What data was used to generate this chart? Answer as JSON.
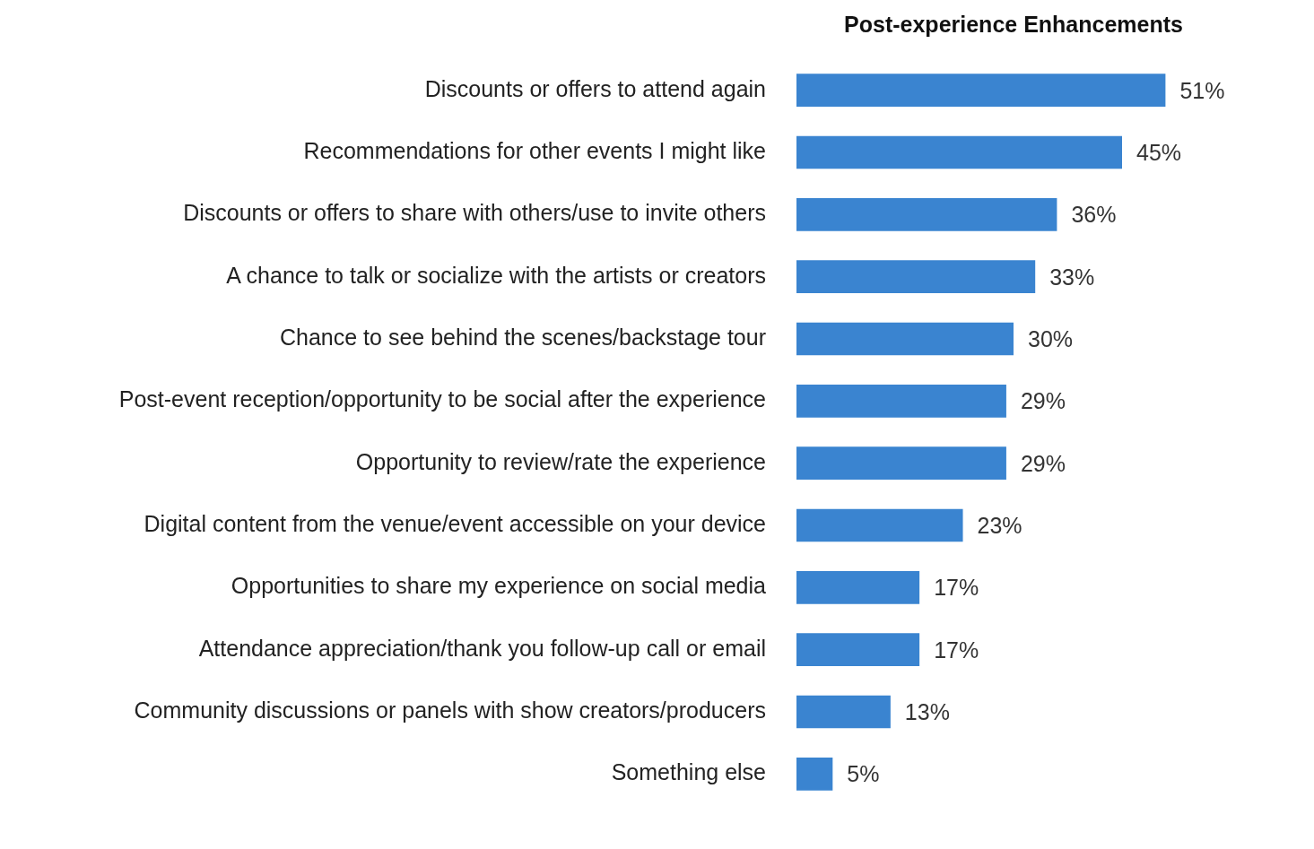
{
  "chart_data": {
    "type": "bar",
    "orientation": "horizontal",
    "title": "Post-experience Enhancements",
    "categories": [
      "Discounts or offers to attend again",
      "Recommendations for other events I might like",
      "Discounts or offers to share with others/use to invite others",
      "A chance to talk or socialize with the artists or creators",
      "Chance to see behind the scenes/backstage tour",
      "Post-event reception/opportunity to be social after the experience",
      "Opportunity to review/rate the experience",
      "Digital content from the venue/event accessible on your device",
      "Opportunities to share my experience on social media",
      "Attendance appreciation/thank you follow-up call or email",
      "Community discussions or panels with show creators/producers",
      "Something else"
    ],
    "values": [
      51,
      45,
      36,
      33,
      30,
      29,
      29,
      23,
      17,
      17,
      13,
      5
    ],
    "value_labels": [
      "51%",
      "45%",
      "36%",
      "33%",
      "30%",
      "29%",
      "29%",
      "23%",
      "17%",
      "17%",
      "13%",
      "5%"
    ],
    "color": "#3a84d0",
    "legend": false,
    "tick_labels": "y"
  }
}
